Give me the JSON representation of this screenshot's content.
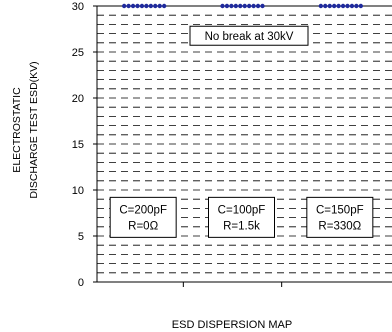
{
  "chart_data": {
    "type": "scatter",
    "title": "",
    "xlabel": "ESD DISPERSION   MAP",
    "ylabel_lines": [
      "ELECTROSTATIC",
      "DISCHARGE TEST ESD(KV)"
    ],
    "ylim": [
      0,
      30
    ],
    "yticks": [
      0,
      5,
      10,
      15,
      20,
      25,
      30
    ],
    "grid": true,
    "annotation": "No break at 30kV",
    "series": [
      {
        "name": "C=200pF R=0Ω",
        "label_lines": [
          "C=200pF",
          "R=0Ω"
        ],
        "values": [
          30,
          30,
          30,
          30,
          30,
          30,
          30,
          30,
          30,
          30
        ]
      },
      {
        "name": "C=100pF R=1.5k",
        "label_lines": [
          "C=100pF",
          "R=1.5k"
        ],
        "values": [
          30,
          30,
          30,
          30,
          30,
          30,
          30,
          30,
          30,
          30
        ]
      },
      {
        "name": "C=150pF R=330Ω",
        "label_lines": [
          "C=150pF",
          "R=330Ω"
        ],
        "values": [
          30,
          30,
          30,
          30,
          30,
          30,
          30,
          30,
          30,
          30
        ]
      }
    ],
    "marker_color": "#1f2a9c",
    "grid_color": "#000000"
  }
}
